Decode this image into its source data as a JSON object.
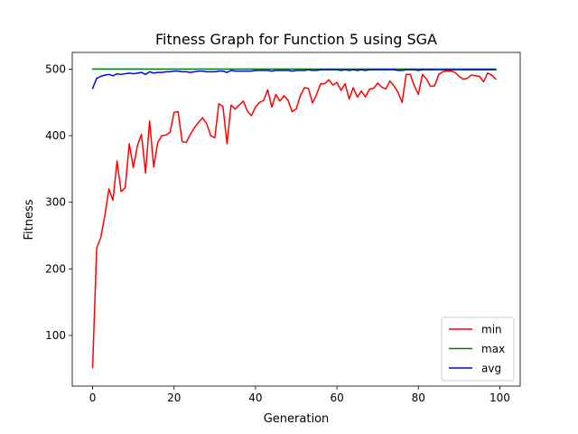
{
  "chart_data": {
    "type": "line",
    "title": "Fitness Graph for Function 5 using SGA",
    "xlabel": "Generation",
    "ylabel": "Fitness",
    "xlim": [
      -5,
      105
    ],
    "ylim": [
      24,
      525
    ],
    "xticks": [
      0,
      20,
      40,
      60,
      80,
      100
    ],
    "yticks": [
      100,
      200,
      300,
      400,
      500
    ],
    "grid": false,
    "legend_position": "lower-right",
    "series": [
      {
        "name": "min",
        "color": "#ff0000",
        "values": [
          52,
          231,
          247,
          280,
          320,
          303,
          362,
          316,
          322,
          388,
          352,
          385,
          402,
          344,
          422,
          353,
          390,
          400,
          401,
          405,
          435,
          436,
          391,
          390,
          402,
          412,
          420,
          427,
          418,
          400,
          397,
          448,
          444,
          388,
          446,
          440,
          446,
          452,
          437,
          430,
          443,
          450,
          453,
          469,
          443,
          462,
          452,
          460,
          453,
          436,
          440,
          460,
          472,
          471,
          449,
          462,
          478,
          478,
          484,
          476,
          480,
          468,
          478,
          455,
          472,
          458,
          467,
          458,
          470,
          471,
          479,
          473,
          470,
          482,
          475,
          465,
          450,
          492,
          492,
          475,
          462,
          492,
          485,
          474,
          475,
          492,
          496,
          497,
          497,
          495,
          489,
          485,
          486,
          491,
          490,
          489,
          481,
          494,
          491,
          485
        ]
      },
      {
        "name": "max",
        "color": "#008000",
        "values": [
          500,
          500,
          500,
          500,
          500,
          500,
          500,
          500,
          500,
          500,
          500,
          500,
          500,
          500,
          500,
          500,
          500,
          500,
          500,
          500,
          500,
          500,
          500,
          500,
          500,
          500,
          500,
          500,
          500,
          500,
          500,
          500,
          500,
          500,
          500,
          500,
          500,
          500,
          500,
          500,
          500,
          500,
          500,
          500,
          500,
          500,
          500,
          500,
          500,
          500,
          500,
          500,
          500,
          500,
          500,
          500,
          500,
          500,
          500,
          500,
          500,
          500,
          500,
          500,
          500,
          500,
          500,
          500,
          500,
          500,
          500,
          500,
          500,
          500,
          500,
          500,
          500,
          500,
          500,
          500,
          500,
          500,
          500,
          500,
          500,
          500,
          500,
          500,
          500,
          500,
          500,
          500,
          500,
          500,
          500,
          500,
          500,
          500,
          500,
          500
        ]
      },
      {
        "name": "avg",
        "color": "#0000ff",
        "values": [
          471,
          486,
          489,
          491,
          492,
          490,
          493,
          492,
          493,
          494,
          493,
          494,
          495,
          492,
          496,
          494,
          495,
          495,
          496,
          496,
          497,
          497,
          496,
          496,
          495,
          496,
          497,
          497,
          496,
          496,
          496,
          497,
          497,
          495,
          498,
          497,
          497,
          497,
          497,
          497,
          498,
          498,
          498,
          498,
          497,
          498,
          498,
          498,
          498,
          497,
          498,
          498,
          498,
          499,
          498,
          498,
          499,
          499,
          499,
          499,
          499,
          498,
          499,
          498,
          499,
          498,
          499,
          498,
          499,
          499,
          499,
          499,
          499,
          499,
          499,
          498,
          498,
          499,
          499,
          499,
          498,
          499,
          499,
          499,
          499,
          499,
          499,
          499,
          499,
          499,
          499,
          499,
          499,
          499,
          499,
          499,
          499,
          499,
          499,
          499
        ]
      }
    ]
  }
}
